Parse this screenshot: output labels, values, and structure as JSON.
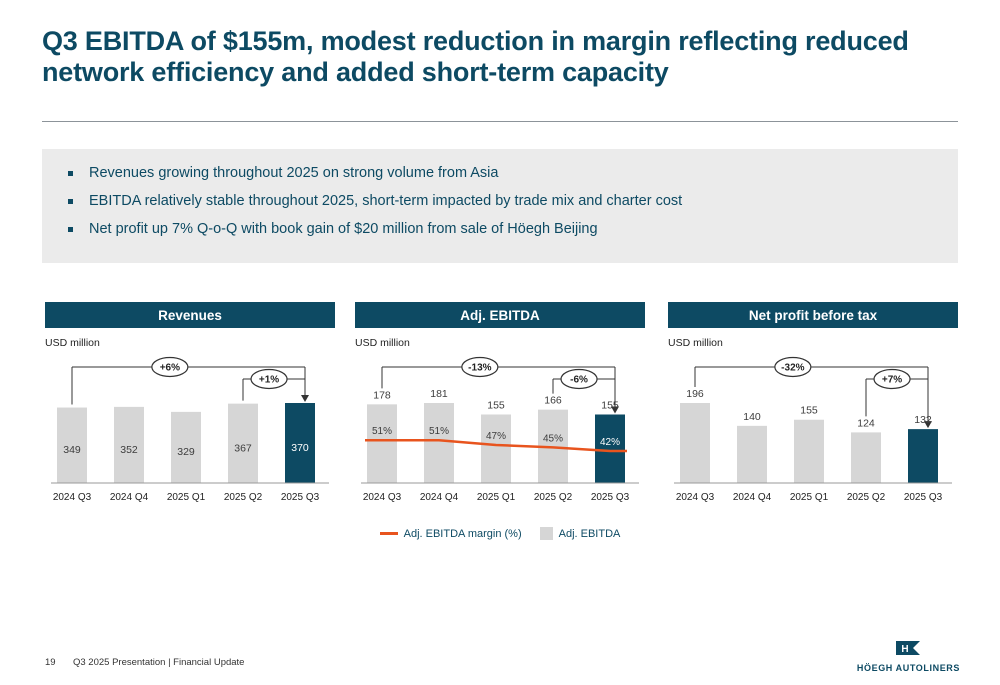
{
  "slide": {
    "title": "Q3 EBITDA of $155m, modest reduction in margin reflecting reduced network efficiency and added short-term capacity",
    "bullets": [
      "Revenues growing throughout 2025 on strong volume from Asia",
      "EBITDA relatively stable throughout 2025, short-term impacted by trade mix and charter cost",
      "Net profit up 7% Q-o-Q with book gain of $20 million from sale of Höegh Beijing"
    ],
    "footer": {
      "page_number": "19",
      "footer_text": "Q3 2025 Presentation | Financial Update",
      "logo_text": "HÖEGH AUTOLINERS"
    }
  },
  "colors": {
    "accent": "#0d4a63",
    "bar_gray": "#d6d6d6",
    "bar_dark": "#0d4a63",
    "margin_line": "#e8541e",
    "bracket_line": "#333333",
    "label_dark": "#3d3d3d",
    "note_bg": "#ebebeb"
  },
  "chart_data": [
    {
      "type": "bar",
      "title": "Revenues",
      "unit_label": "USD million",
      "categories": [
        "2024 Q3",
        "2024 Q4",
        "2025 Q1",
        "2025 Q2",
        "2025 Q3"
      ],
      "values": [
        349,
        352,
        329,
        367,
        370
      ],
      "value_label_position": "inside",
      "highlight_last": true,
      "grid": false,
      "annotations": [
        {
          "label": "+6%",
          "from": 0,
          "to": 4
        },
        {
          "label": "+1%",
          "from": 3,
          "to": 4
        }
      ]
    },
    {
      "type": "bar+line",
      "title": "Adj. EBITDA",
      "unit_label": "USD million",
      "categories": [
        "2024 Q3",
        "2024 Q4",
        "2025 Q1",
        "2025 Q2",
        "2025 Q3"
      ],
      "values": [
        178,
        181,
        155,
        166,
        155
      ],
      "margin_pct": [
        51,
        51,
        47,
        45,
        42
      ],
      "value_label_position": "above",
      "highlight_last": true,
      "grid": false,
      "annotations": [
        {
          "label": "-13%",
          "from": 0,
          "to": 4
        },
        {
          "label": "-6%",
          "from": 3,
          "to": 4
        }
      ],
      "legend": [
        {
          "label": "Adj. EBITDA margin (%)",
          "type": "line"
        },
        {
          "label": "Adj. EBITDA",
          "type": "bar"
        }
      ]
    },
    {
      "type": "bar",
      "title": "Net profit before tax",
      "unit_label": "USD million",
      "categories": [
        "2024 Q3",
        "2024 Q4",
        "2025 Q1",
        "2025 Q2",
        "2025 Q3"
      ],
      "values": [
        196,
        140,
        155,
        124,
        132
      ],
      "value_label_position": "above",
      "highlight_last": true,
      "grid": false,
      "annotations": [
        {
          "label": "-32%",
          "from": 0,
          "to": 4
        },
        {
          "label": "+7%",
          "from": 3,
          "to": 4
        }
      ]
    }
  ]
}
